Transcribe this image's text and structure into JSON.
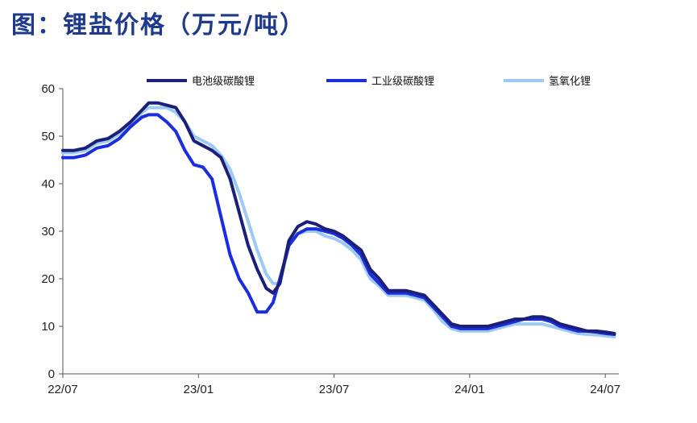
{
  "title": "图：锂盐价格（万元/吨）",
  "colors": {
    "title": "#1f3a8a",
    "battery_grade": "#1c1f78",
    "industrial_grade": "#1a2ee0",
    "hydroxide": "#9ccaf2"
  },
  "chart_data": {
    "type": "line",
    "title": "锂盐价格（万元/吨）",
    "xlabel": "",
    "ylabel": "",
    "ylim": [
      0,
      60
    ],
    "yticks": [
      0,
      10,
      20,
      30,
      40,
      50,
      60
    ],
    "xlim": [
      0,
      24.6
    ],
    "xticks": [
      {
        "pos": 0,
        "label": "22/07"
      },
      {
        "pos": 6,
        "label": "23/01"
      },
      {
        "pos": 12,
        "label": "23/07"
      },
      {
        "pos": 18,
        "label": "24/01"
      },
      {
        "pos": 24,
        "label": "24/07"
      }
    ],
    "grid": false,
    "legend": "top",
    "series": [
      {
        "name": "电池级碳酸锂",
        "color": "#1c1f78",
        "x": [
          0,
          0.5,
          1,
          1.5,
          2,
          2.5,
          3,
          3.5,
          3.8,
          4.2,
          4.6,
          5,
          5.4,
          5.8,
          6.2,
          6.6,
          7,
          7.4,
          7.8,
          8.2,
          8.6,
          9,
          9.3,
          9.6,
          10,
          10.4,
          10.8,
          11.2,
          11.6,
          12,
          12.4,
          12.8,
          13.2,
          13.6,
          14,
          14.4,
          14.8,
          15.2,
          15.6,
          16,
          16.4,
          16.8,
          17.2,
          17.6,
          18,
          18.4,
          18.8,
          19.2,
          19.6,
          20,
          20.4,
          20.8,
          21.2,
          21.6,
          22,
          22.4,
          22.8,
          23.2,
          23.6,
          24,
          24.4
        ],
        "values": [
          47,
          47,
          47.5,
          49,
          49.5,
          51,
          53,
          55.5,
          57,
          57,
          56.5,
          56,
          53,
          49,
          48,
          47,
          45.5,
          41,
          34,
          27,
          22,
          18,
          17,
          19,
          28,
          31,
          32,
          31.5,
          30.5,
          30,
          29,
          27.5,
          26,
          22,
          20,
          17.5,
          17.5,
          17.5,
          17,
          16.5,
          14.5,
          12.5,
          10.5,
          10,
          10,
          10,
          10,
          10.5,
          11,
          11.5,
          11.5,
          12,
          12,
          11.5,
          10.5,
          10,
          9.5,
          9,
          9,
          8.8,
          8.5
        ]
      },
      {
        "name": "工业级碳酸锂",
        "color": "#1a2ee0",
        "x": [
          0,
          0.5,
          1,
          1.5,
          2,
          2.5,
          3,
          3.5,
          3.8,
          4.2,
          4.6,
          5,
          5.4,
          5.8,
          6.2,
          6.6,
          7,
          7.4,
          7.8,
          8.2,
          8.6,
          9,
          9.3,
          9.6,
          10,
          10.4,
          10.8,
          11.2,
          11.6,
          12,
          12.4,
          12.8,
          13.2,
          13.6,
          14,
          14.4,
          14.8,
          15.2,
          15.6,
          16,
          16.4,
          16.8,
          17.2,
          17.6,
          18,
          18.4,
          18.8,
          19.2,
          19.6,
          20,
          20.4,
          20.8,
          21.2,
          21.6,
          22,
          22.4,
          22.8,
          23.2,
          23.6,
          24,
          24.4
        ],
        "values": [
          45.5,
          45.5,
          46,
          47.5,
          48,
          49.5,
          52,
          54,
          54.5,
          54.5,
          53,
          51,
          47,
          44,
          43.5,
          41,
          33,
          25,
          20,
          17,
          13,
          13,
          15,
          20,
          27,
          29.5,
          30.5,
          30.5,
          30,
          29.5,
          28.5,
          27,
          25,
          21,
          19,
          17,
          17,
          17,
          16.5,
          16,
          14,
          12,
          10,
          9.5,
          9.5,
          9.5,
          9.5,
          10,
          10.5,
          11,
          11.5,
          11.5,
          11.5,
          11,
          10,
          9.5,
          9,
          9,
          8.8,
          8.5,
          8.3
        ]
      },
      {
        "name": "氢氧化锂",
        "color": "#9ccaf2",
        "x": [
          0,
          0.5,
          1,
          1.5,
          2,
          2.5,
          3,
          3.5,
          3.8,
          4.2,
          4.6,
          5,
          5.4,
          5.8,
          6.2,
          6.6,
          7,
          7.4,
          7.8,
          8.2,
          8.6,
          9,
          9.3,
          9.6,
          10,
          10.4,
          10.8,
          11.2,
          11.6,
          12,
          12.4,
          12.8,
          13.2,
          13.6,
          14,
          14.4,
          14.8,
          15.2,
          15.6,
          16,
          16.4,
          16.8,
          17.2,
          17.6,
          18,
          18.4,
          18.8,
          19.2,
          19.6,
          20,
          20.4,
          20.8,
          21.2,
          21.6,
          22,
          22.4,
          22.8,
          23.2,
          23.6,
          24,
          24.4
        ],
        "values": [
          46.5,
          46.5,
          47,
          48.5,
          49,
          50.5,
          52.5,
          55,
          56,
          56,
          56,
          55,
          53,
          50,
          49,
          48,
          46,
          43,
          38,
          32,
          26,
          21,
          19,
          19,
          27,
          29.5,
          30,
          30,
          29,
          28.5,
          27.5,
          26,
          24,
          20,
          18.5,
          16.5,
          16.5,
          16.5,
          16,
          15.5,
          13.5,
          11,
          9.5,
          9,
          9,
          9,
          9,
          9.5,
          10,
          10.5,
          10.5,
          10.5,
          10.5,
          10,
          9.5,
          9,
          8.5,
          8.3,
          8.2,
          8,
          7.8
        ]
      }
    ]
  }
}
